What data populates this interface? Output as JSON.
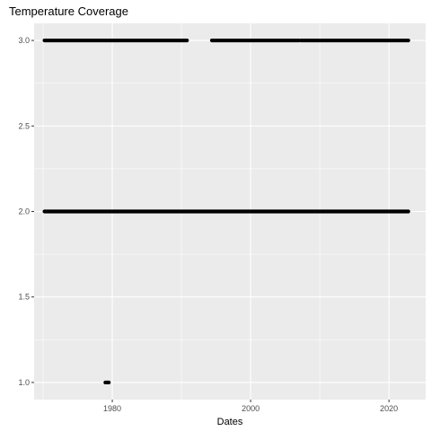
{
  "chart_data": {
    "type": "scatter",
    "title": "Temperature Coverage",
    "xlabel": "Dates",
    "ylabel": "",
    "xlim": [
      1968.7,
      2025.3
    ],
    "ylim": [
      0.9,
      3.1
    ],
    "x_ticks": [
      1980,
      2000,
      2020
    ],
    "x_tick_labels": [
      "1980",
      "2000",
      "2020"
    ],
    "y_ticks": [
      1.0,
      1.5,
      2.0,
      2.5,
      3.0
    ],
    "y_tick_labels": [
      "1.0",
      "1.5",
      "2.0",
      "2.5",
      "3.0"
    ],
    "grid": true,
    "legend": "none",
    "point_color": "#000000",
    "panel_color": "#ebebeb",
    "series": [
      {
        "value": 3.0,
        "ranges": [
          [
            1970.2,
            1990.8
          ],
          [
            1994.4,
            2007.0
          ],
          [
            2007.3,
            2022.8
          ]
        ]
      },
      {
        "value": 2.0,
        "ranges": [
          [
            1970.2,
            2022.8
          ]
        ]
      },
      {
        "value": 1.0,
        "ranges": [
          [
            1979.0,
            1979.5
          ]
        ]
      }
    ]
  }
}
